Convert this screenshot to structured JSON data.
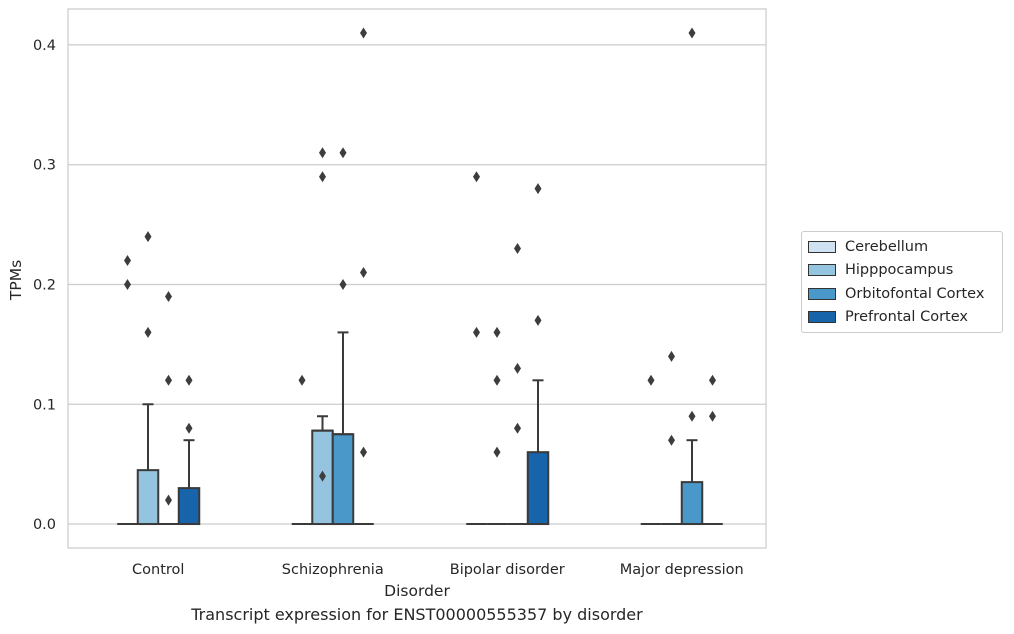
{
  "chart_data": {
    "type": "box",
    "caption": "Transcript expression for ENST00000555357 by disorder",
    "xlabel": "Disorder",
    "ylabel": "TPMs",
    "ylim": [
      -0.02,
      0.43
    ],
    "yticks": [
      "0.0",
      "0.1",
      "0.2",
      "0.3",
      "0.4"
    ],
    "grid": "horizontal",
    "legend_position": "center-right",
    "categories": [
      "Control",
      "Schizophrenia",
      "Bipolar disorder",
      "Major depression"
    ],
    "series": [
      {
        "name": "Cerebellum",
        "color": "#d0e1f2",
        "boxes": [
          {
            "q1": 0,
            "median": 0,
            "q3": 0,
            "whisker_low": 0,
            "whisker_high": 0,
            "outliers": [
              0.22,
              0.2
            ]
          },
          {
            "q1": 0,
            "median": 0,
            "q3": 0,
            "whisker_low": 0,
            "whisker_high": 0,
            "outliers": [
              0.12
            ]
          },
          {
            "q1": 0,
            "median": 0,
            "q3": 0,
            "whisker_low": 0,
            "whisker_high": 0,
            "outliers": [
              0.29,
              0.16
            ]
          },
          {
            "q1": 0,
            "median": 0,
            "q3": 0,
            "whisker_low": 0,
            "whisker_high": 0,
            "outliers": [
              0.12
            ]
          }
        ]
      },
      {
        "name": "Hipppocampus",
        "color": "#94c4df",
        "boxes": [
          {
            "q1": 0,
            "median": 0,
            "q3": 0.045,
            "whisker_low": 0,
            "whisker_high": 0.1,
            "outliers": [
              0.24,
              0.16
            ]
          },
          {
            "q1": 0,
            "median": 0.078,
            "q3": 0.078,
            "whisker_low": 0,
            "whisker_high": 0.09,
            "outliers": [
              0.31,
              0.29,
              0.04
            ]
          },
          {
            "q1": 0,
            "median": 0,
            "q3": 0,
            "whisker_low": 0,
            "whisker_high": 0,
            "outliers": [
              0.16,
              0.12,
              0.06
            ]
          },
          {
            "q1": 0,
            "median": 0,
            "q3": 0,
            "whisker_low": 0,
            "whisker_high": 0,
            "outliers": [
              0.14,
              0.07
            ]
          }
        ]
      },
      {
        "name": "Orbitofontal Cortex",
        "color": "#4a98c9",
        "boxes": [
          {
            "q1": 0,
            "median": 0,
            "q3": 0,
            "whisker_low": 0,
            "whisker_high": 0,
            "outliers": [
              0.19,
              0.12,
              0.02
            ]
          },
          {
            "q1": 0,
            "median": 0.075,
            "q3": 0.075,
            "whisker_low": 0,
            "whisker_high": 0.16,
            "outliers": [
              0.31,
              0.2
            ]
          },
          {
            "q1": 0,
            "median": 0,
            "q3": 0,
            "whisker_low": 0,
            "whisker_high": 0,
            "outliers": [
              0.23,
              0.13,
              0.08
            ]
          },
          {
            "q1": 0,
            "median": 0,
            "q3": 0.035,
            "whisker_low": 0,
            "whisker_high": 0.07,
            "outliers": [
              0.41,
              0.09
            ]
          }
        ]
      },
      {
        "name": "Prefrontal Cortex",
        "color": "#1764ab",
        "boxes": [
          {
            "q1": 0,
            "median": 0,
            "q3": 0.03,
            "whisker_low": 0,
            "whisker_high": 0.07,
            "outliers": [
              0.12,
              0.08
            ]
          },
          {
            "q1": 0,
            "median": 0,
            "q3": 0,
            "whisker_low": 0,
            "whisker_high": 0,
            "outliers": [
              0.41,
              0.21,
              0.06
            ]
          },
          {
            "q1": 0,
            "median": 0,
            "q3": 0.06,
            "whisker_low": 0,
            "whisker_high": 0.12,
            "outliers": [
              0.28,
              0.17
            ]
          },
          {
            "q1": 0,
            "median": 0,
            "q3": 0,
            "whisker_low": 0,
            "whisker_high": 0,
            "outliers": [
              0.12,
              0.09
            ]
          }
        ]
      }
    ]
  }
}
